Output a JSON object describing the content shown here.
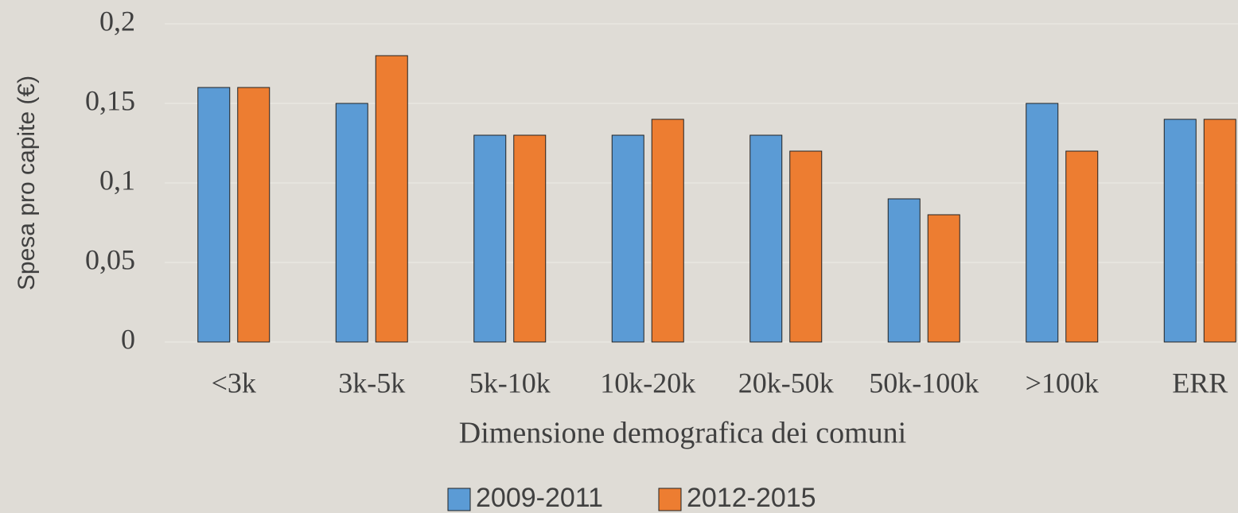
{
  "chart_data": {
    "type": "bar",
    "x_label": "Dimensione demografica dei comuni",
    "y_label": "Spesa pro capite (€)",
    "categories": [
      "<3k",
      "3k-5k",
      "5k-10k",
      "10k-20k",
      "20k-50k",
      "50k-100k",
      ">100k",
      "ERR"
    ],
    "series": [
      {
        "name": "2009-2011",
        "color": "#5b9bd5",
        "values": [
          0.16,
          0.15,
          0.13,
          0.13,
          0.13,
          0.09,
          0.15,
          0.14
        ]
      },
      {
        "name": "2012-2015",
        "color": "#ed7d31",
        "values": [
          0.16,
          0.18,
          0.13,
          0.14,
          0.12,
          0.08,
          0.12,
          0.14
        ]
      }
    ],
    "ylim": [
      0,
      0.2
    ],
    "yticks": [
      0,
      {
        "value": 0.05,
        "label": "0,05"
      },
      {
        "value": 0.1,
        "label": "0,1"
      },
      {
        "value": 0.15,
        "label": "0,15"
      },
      {
        "value": 0.2,
        "label": "0,2"
      }
    ],
    "grid": true,
    "legend": "bottom"
  }
}
